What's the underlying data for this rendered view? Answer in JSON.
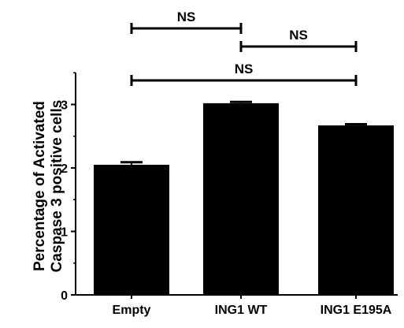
{
  "chart_data": {
    "type": "bar",
    "categories": [
      "Empty",
      "ING1 WT",
      "ING1 E195A"
    ],
    "values": [
      2.05,
      3.02,
      2.67
    ],
    "errors": [
      0.04,
      0.02,
      0.02
    ],
    "ylabel_lines": [
      "Percentage of Activated",
      "Caspase 3 positive cells"
    ],
    "xlabel": "",
    "title": "",
    "ylim": [
      0,
      3.5
    ],
    "yticks": [
      0,
      1,
      2,
      3
    ],
    "grid": false,
    "legend": "none",
    "comparisons": [
      {
        "from": 0,
        "to": 1,
        "label": "NS"
      },
      {
        "from": 1,
        "to": 2,
        "label": "NS"
      },
      {
        "from": 0,
        "to": 2,
        "label": "NS"
      }
    ]
  },
  "colors": {
    "bar_fill": "#000000",
    "axis": "#000000",
    "background": "#ffffff"
  }
}
